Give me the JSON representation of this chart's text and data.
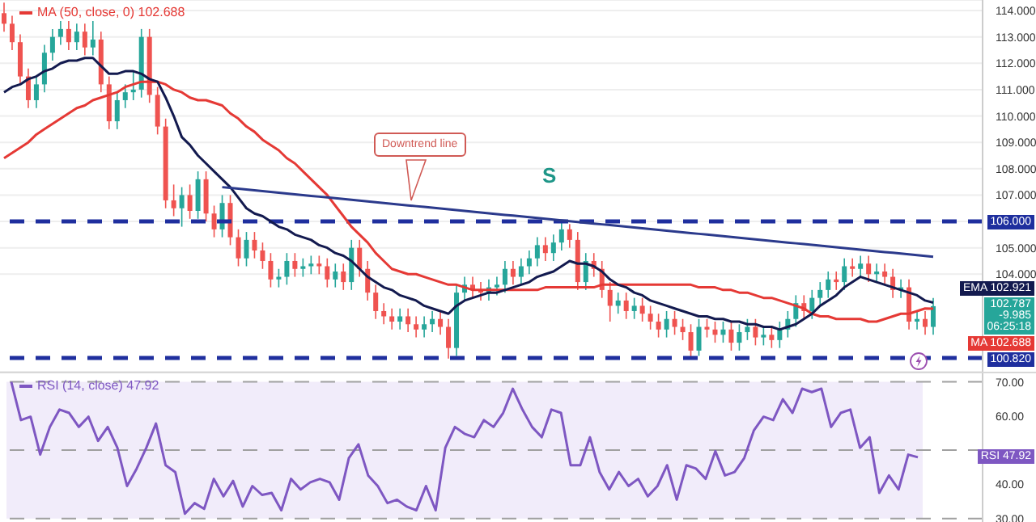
{
  "chart_data": [
    {
      "type": "candlestick",
      "categories": [
        null,
        null,
        null,
        null,
        null,
        null,
        null,
        null,
        null,
        null,
        null,
        null,
        null,
        null,
        null,
        null,
        null,
        null,
        null,
        null,
        null,
        null,
        null,
        null,
        null,
        null,
        null,
        null,
        null,
        null,
        null,
        null,
        null,
        null,
        null,
        null,
        null,
        null,
        null,
        null,
        null,
        null,
        null,
        null,
        null,
        null,
        null,
        null,
        null,
        null,
        null,
        null,
        null,
        null,
        null,
        null,
        null,
        null,
        null,
        null,
        null,
        null,
        null,
        null,
        null,
        null,
        null,
        null,
        null,
        null,
        null,
        null,
        null,
        null,
        null,
        null,
        null,
        null,
        null,
        null,
        null,
        null,
        null,
        null,
        null,
        null,
        null,
        null,
        null,
        null,
        null,
        null,
        null,
        null,
        null,
        null,
        null,
        null,
        null,
        null,
        null,
        null,
        null,
        null,
        null,
        null,
        null,
        null,
        null,
        null,
        null,
        null,
        null,
        null,
        null,
        null
      ],
      "ohlc": [
        [
          113.9,
          114.3,
          113.2,
          113.5
        ],
        [
          113.5,
          113.8,
          112.5,
          112.8
        ],
        [
          112.8,
          113.1,
          111.2,
          111.5
        ],
        [
          111.5,
          111.8,
          110.3,
          110.6
        ],
        [
          110.6,
          111.5,
          110.3,
          111.2
        ],
        [
          111.2,
          112.7,
          110.9,
          112.4
        ],
        [
          112.4,
          113.3,
          112.1,
          113.0
        ],
        [
          113.0,
          113.6,
          112.7,
          113.3
        ],
        [
          113.3,
          113.6,
          112.5,
          112.8
        ],
        [
          112.8,
          113.5,
          112.5,
          113.2
        ],
        [
          113.2,
          113.5,
          112.3,
          112.6
        ],
        [
          112.6,
          113.6,
          112.3,
          112.9
        ],
        [
          112.9,
          113.2,
          110.9,
          111.2
        ],
        [
          111.2,
          111.5,
          109.5,
          109.8
        ],
        [
          109.8,
          110.9,
          109.5,
          110.6
        ],
        [
          110.6,
          111.2,
          110.3,
          110.9
        ],
        [
          110.9,
          111.7,
          110.6,
          111.0
        ],
        [
          111.0,
          113.3,
          110.7,
          113.0
        ],
        [
          113.0,
          113.3,
          110.5,
          110.8
        ],
        [
          110.8,
          111.1,
          109.3,
          109.6
        ],
        [
          109.6,
          109.9,
          106.5,
          106.8
        ],
        [
          106.8,
          107.4,
          106.2,
          106.5
        ],
        [
          106.5,
          107.3,
          105.8,
          107.0
        ],
        [
          107.0,
          107.4,
          106.1,
          106.4
        ],
        [
          106.4,
          107.9,
          106.1,
          107.6
        ],
        [
          107.6,
          107.9,
          106.0,
          106.3
        ],
        [
          106.3,
          106.6,
          105.4,
          105.7
        ],
        [
          105.7,
          107.0,
          105.4,
          106.7
        ],
        [
          106.7,
          107.0,
          105.1,
          105.4
        ],
        [
          105.4,
          105.7,
          104.3,
          104.6
        ],
        [
          104.6,
          105.6,
          104.3,
          105.3
        ],
        [
          105.3,
          105.6,
          104.6,
          104.9
        ],
        [
          104.9,
          105.2,
          104.2,
          104.5
        ],
        [
          104.5,
          104.8,
          103.5,
          103.8
        ],
        [
          103.8,
          104.2,
          103.5,
          103.9
        ],
        [
          103.9,
          104.8,
          103.6,
          104.5
        ],
        [
          104.5,
          104.8,
          103.9,
          104.2
        ],
        [
          104.2,
          104.6,
          103.9,
          104.3
        ],
        [
          104.3,
          104.7,
          104.0,
          104.4
        ],
        [
          104.4,
          104.7,
          104.0,
          104.3
        ],
        [
          104.3,
          104.6,
          103.5,
          103.8
        ],
        [
          103.8,
          104.4,
          103.5,
          104.1
        ],
        [
          104.1,
          104.4,
          103.4,
          103.7
        ],
        [
          103.7,
          105.3,
          103.4,
          105.0
        ],
        [
          105.0,
          105.3,
          103.9,
          104.2
        ],
        [
          104.2,
          104.5,
          103.0,
          103.3
        ],
        [
          103.3,
          103.6,
          102.3,
          102.6
        ],
        [
          102.6,
          102.9,
          102.1,
          102.4
        ],
        [
          102.4,
          102.7,
          101.9,
          102.2
        ],
        [
          102.2,
          102.7,
          101.9,
          102.4
        ],
        [
          102.4,
          102.7,
          101.8,
          102.1
        ],
        [
          102.1,
          102.4,
          101.6,
          101.9
        ],
        [
          101.9,
          102.4,
          101.6,
          102.1
        ],
        [
          102.1,
          102.6,
          101.8,
          102.3
        ],
        [
          102.3,
          102.6,
          101.7,
          102.0
        ],
        [
          102.0,
          102.3,
          100.8,
          101.2
        ],
        [
          101.2,
          103.6,
          100.9,
          103.3
        ],
        [
          103.3,
          103.9,
          103.0,
          103.6
        ],
        [
          103.6,
          103.9,
          103.1,
          103.4
        ],
        [
          103.4,
          103.7,
          103.0,
          103.3
        ],
        [
          103.3,
          103.8,
          103.0,
          103.5
        ],
        [
          103.5,
          103.9,
          103.2,
          103.6
        ],
        [
          103.6,
          104.5,
          103.3,
          104.2
        ],
        [
          104.2,
          104.5,
          103.6,
          103.9
        ],
        [
          103.9,
          104.6,
          103.6,
          104.3
        ],
        [
          104.3,
          104.9,
          104.0,
          104.6
        ],
        [
          104.6,
          105.4,
          104.3,
          105.1
        ],
        [
          105.1,
          105.4,
          104.5,
          104.8
        ],
        [
          104.8,
          105.5,
          104.5,
          105.2
        ],
        [
          105.2,
          106.0,
          104.9,
          105.7
        ],
        [
          105.7,
          105.9,
          105.0,
          105.3
        ],
        [
          105.3,
          105.6,
          103.4,
          103.7
        ],
        [
          103.7,
          104.8,
          103.4,
          104.5
        ],
        [
          104.5,
          104.8,
          103.9,
          104.2
        ],
        [
          104.2,
          104.5,
          103.1,
          103.4
        ],
        [
          103.4,
          103.7,
          102.2,
          102.8
        ],
        [
          102.8,
          103.3,
          102.5,
          103.0
        ],
        [
          103.0,
          103.3,
          102.3,
          102.6
        ],
        [
          102.6,
          103.1,
          102.3,
          102.8
        ],
        [
          102.8,
          103.1,
          102.2,
          102.5
        ],
        [
          102.5,
          102.8,
          101.9,
          102.2
        ],
        [
          102.2,
          102.5,
          101.6,
          101.9
        ],
        [
          101.9,
          102.6,
          101.6,
          102.3
        ],
        [
          102.3,
          102.6,
          101.7,
          102.0
        ],
        [
          102.0,
          102.3,
          101.5,
          101.8
        ],
        [
          101.8,
          102.1,
          100.8,
          101.1
        ],
        [
          101.1,
          102.3,
          100.9,
          102.0
        ],
        [
          102.0,
          102.3,
          101.6,
          101.9
        ],
        [
          101.9,
          102.2,
          101.4,
          101.7
        ],
        [
          101.7,
          102.2,
          101.4,
          101.9
        ],
        [
          101.9,
          102.2,
          101.1,
          101.4
        ],
        [
          101.4,
          102.1,
          101.1,
          101.8
        ],
        [
          101.8,
          102.3,
          101.5,
          102.0
        ],
        [
          102.0,
          102.3,
          101.3,
          101.6
        ],
        [
          101.6,
          102.0,
          101.3,
          101.7
        ],
        [
          101.7,
          102.0,
          101.2,
          101.5
        ],
        [
          101.5,
          102.2,
          101.2,
          101.9
        ],
        [
          101.9,
          102.6,
          101.6,
          102.3
        ],
        [
          102.3,
          103.2,
          102.0,
          102.9
        ],
        [
          102.9,
          103.2,
          102.3,
          102.6
        ],
        [
          102.6,
          103.4,
          102.3,
          103.1
        ],
        [
          103.1,
          103.7,
          102.8,
          103.4
        ],
        [
          103.4,
          104.1,
          103.1,
          103.8
        ],
        [
          103.8,
          104.1,
          103.4,
          103.7
        ],
        [
          103.7,
          104.6,
          103.4,
          104.3
        ],
        [
          104.3,
          104.6,
          103.9,
          104.2
        ],
        [
          104.2,
          104.7,
          103.9,
          104.4
        ],
        [
          104.4,
          104.7,
          103.7,
          104.0
        ],
        [
          104.0,
          104.4,
          103.7,
          104.1
        ],
        [
          104.1,
          104.4,
          103.6,
          103.9
        ],
        [
          103.9,
          104.2,
          103.1,
          103.4
        ],
        [
          103.4,
          103.8,
          103.1,
          103.5
        ],
        [
          103.5,
          103.8,
          101.9,
          102.2
        ],
        [
          102.2,
          102.6,
          101.9,
          102.3
        ],
        [
          102.3,
          102.6,
          101.7,
          102.0
        ],
        [
          102.0,
          103.1,
          101.7,
          102.787
        ]
      ],
      "colors": [
        "#ef5350",
        "#ef5350",
        "#ef5350",
        "#ef5350",
        "#26a69a",
        "#26a69a",
        "#26a69a",
        "#26a69a",
        "#ef5350",
        "#26a69a",
        "#ef5350",
        "#26a69a",
        "#ef5350",
        "#ef5350",
        "#26a69a",
        "#26a69a",
        "#26a69a",
        "#26a69a",
        "#ef5350",
        "#ef5350",
        "#ef5350",
        "#ef5350",
        "#26a69a",
        "#ef5350",
        "#26a69a",
        "#ef5350",
        "#ef5350",
        "#26a69a",
        "#ef5350",
        "#ef5350",
        "#26a69a",
        "#ef5350",
        "#ef5350",
        "#ef5350",
        "#26a69a",
        "#26a69a",
        "#ef5350",
        "#26a69a",
        "#26a69a",
        "#ef5350",
        "#ef5350",
        "#26a69a",
        "#ef5350",
        "#26a69a",
        "#ef5350",
        "#ef5350",
        "#ef5350",
        "#ef5350",
        "#ef5350",
        "#26a69a",
        "#ef5350",
        "#ef5350",
        "#26a69a",
        "#26a69a",
        "#ef5350",
        "#ef5350",
        "#26a69a",
        "#26a69a",
        "#ef5350",
        "#ef5350",
        "#26a69a",
        "#26a69a",
        "#26a69a",
        "#ef5350",
        "#26a69a",
        "#26a69a",
        "#26a69a",
        "#ef5350",
        "#26a69a",
        "#26a69a",
        "#ef5350",
        "#ef5350",
        "#26a69a",
        "#ef5350",
        "#ef5350",
        "#ef5350",
        "#26a69a",
        "#ef5350",
        "#26a69a",
        "#ef5350",
        "#ef5350",
        "#ef5350",
        "#26a69a",
        "#ef5350",
        "#ef5350",
        "#ef5350",
        "#26a69a",
        "#ef5350",
        "#ef5350",
        "#26a69a",
        "#ef5350",
        "#26a69a",
        "#26a69a",
        "#ef5350",
        "#26a69a",
        "#ef5350",
        "#26a69a",
        "#26a69a",
        "#26a69a",
        "#ef5350",
        "#26a69a",
        "#26a69a",
        "#26a69a",
        "#ef5350",
        "#26a69a",
        "#ef5350",
        "#26a69a",
        "#ef5350",
        "#26a69a",
        "#ef5350",
        "#ef5350",
        "#26a69a",
        "#ef5350",
        "#26a69a",
        "#ef5350",
        "#26a69a"
      ],
      "ylim": [
        100.3,
        114.4
      ],
      "yticks": [
        {
          "value": 104,
          "label": "104.000"
        },
        {
          "value": 105,
          "label": "105.000"
        },
        {
          "value": 106,
          "label": null
        },
        {
          "value": 107,
          "label": "107.000"
        },
        {
          "value": 108,
          "label": "108.000"
        },
        {
          "value": 109,
          "label": "109.000"
        },
        {
          "value": 110,
          "label": "110.000"
        },
        {
          "value": 111,
          "label": "111.000"
        },
        {
          "value": 112,
          "label": "112.000"
        },
        {
          "value": 113,
          "label": "113.000"
        },
        {
          "value": 114,
          "label": "114.000"
        }
      ],
      "tick_labels": "y",
      "grid": "y",
      "legend": "top left",
      "series": [
        {
          "type": "line",
          "name": "MA (50, close, 0) 102.688",
          "color": "#e53935",
          "values": [
            108.4,
            108.6,
            108.8,
            109.0,
            109.3,
            109.5,
            109.7,
            109.9,
            110.1,
            110.3,
            110.4,
            110.6,
            110.7,
            110.8,
            110.9,
            111.1,
            111.2,
            111.3,
            111.3,
            111.3,
            111.2,
            111.0,
            110.9,
            110.7,
            110.6,
            110.6,
            110.5,
            110.4,
            110.1,
            109.9,
            109.6,
            109.4,
            109.1,
            108.9,
            108.7,
            108.4,
            108.2,
            107.9,
            107.6,
            107.3,
            107.0,
            106.6,
            106.2,
            105.8,
            105.5,
            105.2,
            104.8,
            104.5,
            104.2,
            104.1,
            104.0,
            104.0,
            103.9,
            103.8,
            103.7,
            103.6,
            103.6,
            103.5,
            103.4,
            103.4,
            103.4,
            103.4,
            103.4,
            103.4,
            103.4,
            103.4,
            103.4,
            103.5,
            103.5,
            103.5,
            103.5,
            103.5,
            103.5,
            103.5,
            103.6,
            103.6,
            103.6,
            103.6,
            103.6,
            103.6,
            103.6,
            103.6,
            103.6,
            103.6,
            103.6,
            103.6,
            103.5,
            103.5,
            103.5,
            103.4,
            103.4,
            103.3,
            103.3,
            103.2,
            103.1,
            103.1,
            103.0,
            102.9,
            102.8,
            102.7,
            102.5,
            102.4,
            102.4,
            102.3,
            102.3,
            102.3,
            102.3,
            102.2,
            102.2,
            102.3,
            102.4,
            102.5,
            102.5,
            102.6,
            102.7,
            102.688
          ]
        },
        {
          "type": "line",
          "color": "#131a4f",
          "values": [
            110.9,
            111.1,
            111.2,
            111.4,
            111.5,
            111.7,
            111.8,
            112.0,
            112.1,
            112.1,
            112.2,
            112.2,
            111.9,
            111.6,
            111.6,
            111.7,
            111.7,
            111.6,
            111.4,
            111.3,
            110.7,
            110.0,
            109.2,
            108.9,
            108.5,
            108.2,
            107.9,
            107.6,
            107.3,
            106.9,
            106.5,
            106.3,
            106.2,
            106.0,
            105.8,
            105.7,
            105.5,
            105.4,
            105.3,
            105.1,
            105.0,
            104.8,
            104.7,
            104.5,
            104.2,
            103.9,
            103.7,
            103.5,
            103.4,
            103.2,
            103.1,
            103.0,
            102.8,
            102.7,
            102.6,
            102.5,
            102.8,
            103.0,
            103.1,
            103.2,
            103.3,
            103.3,
            103.4,
            103.5,
            103.6,
            103.7,
            103.9,
            104.0,
            104.1,
            104.3,
            104.5,
            104.4,
            104.4,
            104.3,
            104.1,
            103.8,
            103.6,
            103.5,
            103.3,
            103.2,
            103.0,
            102.9,
            102.8,
            102.7,
            102.6,
            102.5,
            102.4,
            102.4,
            102.3,
            102.3,
            102.2,
            102.2,
            102.1,
            102.1,
            102.0,
            102.0,
            101.9,
            102.0,
            102.1,
            102.3,
            102.5,
            102.8,
            103.0,
            103.2,
            103.5,
            103.7,
            103.9,
            103.8,
            103.7,
            103.6,
            103.5,
            103.4,
            103.3,
            103.2,
            103.0,
            102.921
          ]
        },
        {
          "type": "line",
          "color": "#2b3a8c",
          "values": [
            null,
            null,
            null,
            null,
            null,
            null,
            null,
            null,
            null,
            null,
            null,
            null,
            null,
            null,
            null,
            null,
            null,
            null,
            null,
            null,
            null,
            null,
            null,
            null,
            null,
            null,
            null,
            107.3,
            107.27,
            107.24,
            107.21,
            107.18,
            107.15,
            107.12,
            107.09,
            107.06,
            107.03,
            107.0,
            106.97,
            106.94,
            106.91,
            106.88,
            106.85,
            106.82,
            106.79,
            106.76,
            106.73,
            106.7,
            106.67,
            106.64,
            106.61,
            106.58,
            106.55,
            106.52,
            106.49,
            106.46,
            106.43,
            106.4,
            106.37,
            106.34,
            106.31,
            106.28,
            106.25,
            106.22,
            106.19,
            106.16,
            106.13,
            106.1,
            106.07,
            106.04,
            106.01,
            105.98,
            105.95,
            105.92,
            105.89,
            105.86,
            105.83,
            105.8,
            105.77,
            105.74,
            105.71,
            105.68,
            105.65,
            105.62,
            105.59,
            105.56,
            105.53,
            105.5,
            105.47,
            105.44,
            105.41,
            105.38,
            105.35,
            105.32,
            105.29,
            105.26,
            105.23,
            105.2,
            105.17,
            105.14,
            105.11,
            105.08,
            105.05,
            105.02,
            104.99,
            104.96,
            104.93,
            104.9,
            104.87,
            104.84,
            104.81,
            104.78,
            104.75,
            104.72,
            104.69,
            104.66
          ]
        }
      ],
      "ref_lines": [
        {
          "axis": "y",
          "value": 106,
          "label": "106.000",
          "color": "#1f2f9e",
          "line_style": "dashed"
        },
        {
          "axis": "y",
          "value": 100.82,
          "label": "100.820",
          "color": "#1f2f9e",
          "line_style": "dashed"
        }
      ],
      "annotations": [
        "Downtrend line",
        "S",
        "EMA 102.921",
        "102.787\n-9.985\n06:25:18",
        "MA 102.688"
      ]
    },
    {
      "type": "line",
      "categories": [
        null,
        null,
        null,
        null,
        null,
        null,
        null,
        null,
        null,
        null,
        null,
        null,
        null,
        null,
        null,
        null,
        null,
        null,
        null,
        null,
        null,
        null,
        null,
        null,
        null,
        null,
        null,
        null,
        null,
        null,
        null,
        null,
        null,
        null,
        null,
        null,
        null,
        null,
        null,
        null,
        null,
        null,
        null,
        null,
        null,
        null,
        null,
        null,
        null,
        null,
        null,
        null,
        null,
        null,
        null,
        null,
        null,
        null,
        null,
        null,
        null,
        null,
        null,
        null,
        null,
        null,
        null,
        null,
        null,
        null,
        null,
        null,
        null,
        null,
        null,
        null,
        null,
        null,
        null,
        null,
        null,
        null,
        null,
        null,
        null,
        null,
        null,
        null,
        null,
        null,
        null,
        null,
        null,
        null,
        null
      ],
      "ylim": [
        28.5,
        72.5
      ],
      "yticks": [
        {
          "value": 30,
          "label": "30.00"
        },
        {
          "value": 40,
          "label": "40.00"
        },
        {
          "value": 50,
          "label": null
        },
        {
          "value": 60,
          "label": "60.00"
        },
        {
          "value": 70,
          "label": "70.00"
        }
      ],
      "tick_labels": "y",
      "legend": "top left",
      "series": [
        {
          "name": "RSI (14, close) 47.92",
          "color": "#7e57c2",
          "values": [
            70,
            58.8,
            59.8,
            48.7,
            56.8,
            61.9,
            60.9,
            56.8,
            59.8,
            52.7,
            56.8,
            50.7,
            39.5,
            44.6,
            50.7,
            57.8,
            45.6,
            43.6,
            31.4,
            34.5,
            32.8,
            41.6,
            36.5,
            41,
            33.5,
            39.5,
            36.9,
            37.5,
            32.4,
            41.6,
            38.5,
            40.6,
            41.6,
            40.6,
            35.5,
            47.7,
            51.7,
            42.6,
            39.5,
            34.5,
            35.5,
            33.5,
            32.4,
            39.5,
            32.4,
            50.7,
            56.8,
            54.8,
            53.8,
            58.8,
            56.8,
            60.9,
            68,
            61.9,
            56.8,
            53.8,
            61.9,
            60.9,
            45.6,
            45.6,
            53.8,
            43.6,
            38.5,
            43.6,
            39.5,
            41.6,
            36.5,
            39.5,
            45.6,
            35.5,
            45.6,
            44.6,
            41.6,
            49.7,
            42.6,
            43.6,
            47.7,
            55.8,
            59.8,
            58.8,
            64.9,
            60.9,
            68,
            67,
            68,
            56.8,
            60.9,
            61.9,
            50.7,
            53.8,
            37.5,
            42.6,
            38.5,
            48.7,
            47.92
          ]
        }
      ],
      "bands": [
        {
          "axis": "y",
          "from": 30,
          "to": 70,
          "color": "#f1ecfa"
        }
      ],
      "ref_lines": [
        {
          "axis": "y",
          "value": 70,
          "color": "#a0a0a0",
          "line_style": "dashed"
        },
        {
          "axis": "y",
          "value": 50,
          "color": "#a0a0a0",
          "line_style": "dashed"
        },
        {
          "axis": "y",
          "value": 30,
          "color": "#a0a0a0",
          "line_style": "dashed"
        }
      ],
      "annotations": [
        "RSI 47.92"
      ]
    }
  ]
}
